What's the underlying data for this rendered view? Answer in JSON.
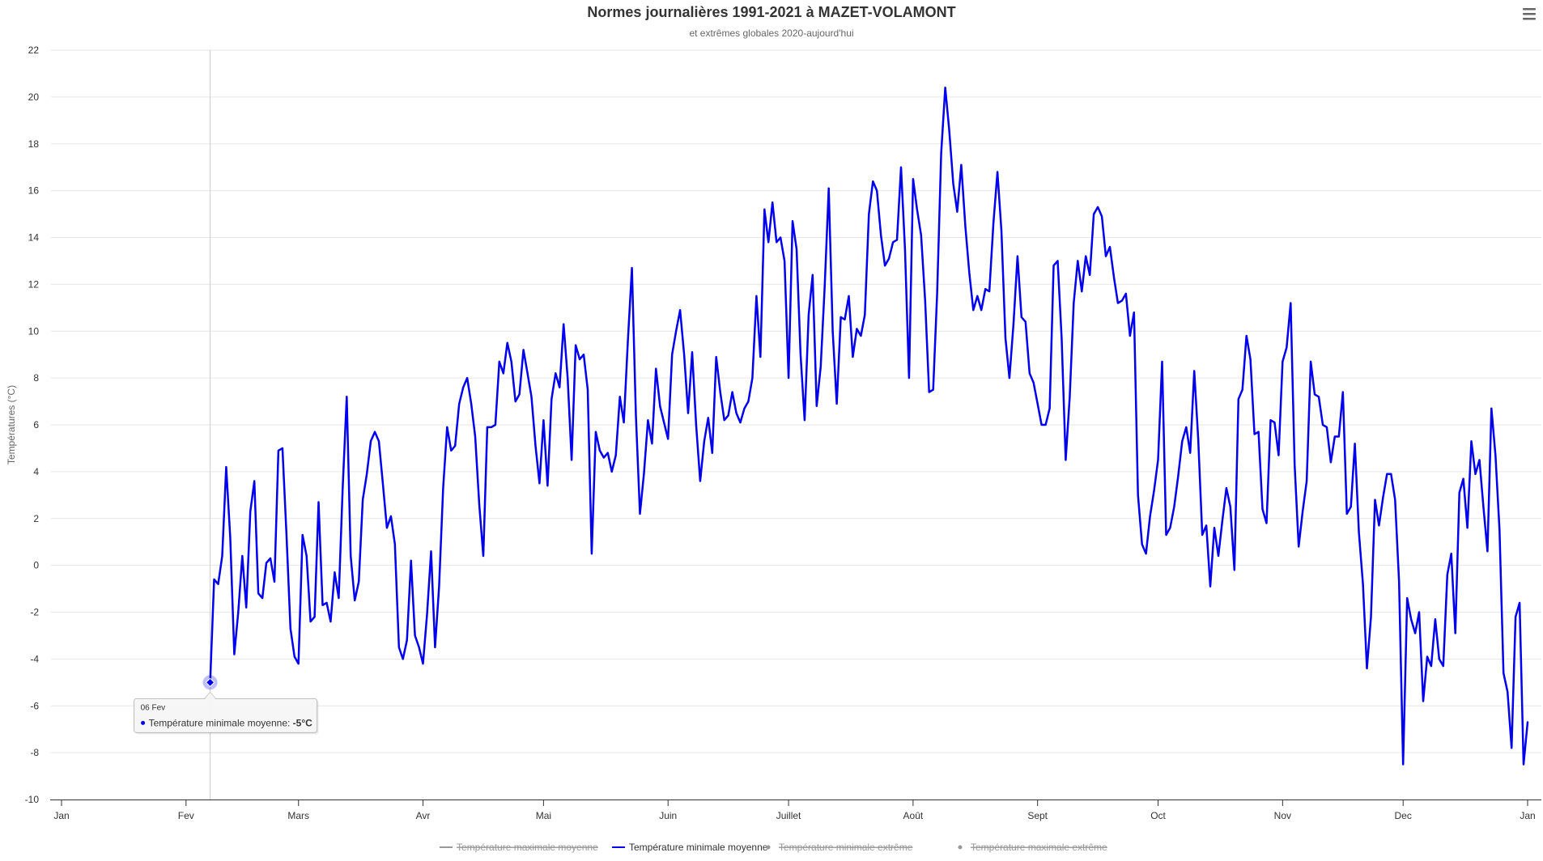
{
  "chart_data": {
    "type": "line",
    "title": "Normes journalières 1991-2021 à MAZET-VOLAMONT",
    "subtitle": "et extrêmes globales 2020-aujourd'hui",
    "ylabel": "Températures (°C)",
    "ylim": [
      -10,
      22
    ],
    "yticks": [
      -10,
      -8,
      -6,
      -4,
      -2,
      0,
      2,
      4,
      6,
      8,
      10,
      12,
      14,
      16,
      18,
      20,
      22
    ],
    "xlim": [
      0,
      365
    ],
    "xticks": [
      {
        "label": "Jan",
        "day": 0
      },
      {
        "label": "Fev",
        "day": 31
      },
      {
        "label": "Mars",
        "day": 59
      },
      {
        "label": "Avr",
        "day": 90
      },
      {
        "label": "Mai",
        "day": 120
      },
      {
        "label": "Juin",
        "day": 151
      },
      {
        "label": "Juillet",
        "day": 181
      },
      {
        "label": "Août",
        "day": 212
      },
      {
        "label": "Sept",
        "day": 243
      },
      {
        "label": "Oct",
        "day": 273
      },
      {
        "label": "Nov",
        "day": 304
      },
      {
        "label": "Dec",
        "day": 334
      },
      {
        "label": "Jan",
        "day": 365
      }
    ],
    "grid": true,
    "legend_position": "bottom",
    "series": [
      {
        "name": "Température maximale moyenne",
        "visible": false,
        "color": "#333333",
        "marker": "line",
        "values": []
      },
      {
        "name": "Température minimale moyenne",
        "visible": true,
        "color": "#0000ee",
        "marker": "line",
        "start_day": 37,
        "values": [
          -5,
          -0.6,
          -0.8,
          0.4,
          4.2,
          1.2,
          -3.8,
          -2,
          0.4,
          -1.8,
          2.3,
          3.6,
          -1.2,
          -1.4,
          0.1,
          0.3,
          -0.7,
          4.9,
          5,
          1.3,
          -2.7,
          -3.9,
          -4.2,
          1.3,
          0.4,
          -2.4,
          -2.2,
          2.7,
          -1.7,
          -1.6,
          -2.4,
          -0.3,
          -1.4,
          3.3,
          7.2,
          0.4,
          -1.5,
          -0.7,
          2.8,
          3.9,
          5.3,
          5.7,
          5.3,
          3.5,
          1.6,
          2.1,
          0.9,
          -3.5,
          -4,
          -3.2,
          0.2,
          -3,
          -3.5,
          -4.2,
          -2.1,
          0.6,
          -3.5,
          -0.9,
          3.3,
          5.9,
          4.9,
          5.1,
          6.9,
          7.6,
          8,
          6.9,
          5.5,
          2.6,
          0.4,
          5.9,
          5.9,
          6,
          8.7,
          8.2,
          9.5,
          8.7,
          7,
          7.3,
          9.2,
          8.2,
          7.2,
          5.1,
          3.5,
          6.2,
          3.4,
          7.1,
          8.2,
          7.6,
          10.3,
          8,
          4.5,
          9.4,
          8.8,
          9,
          7.5,
          0.5,
          5.7,
          4.9,
          4.6,
          4.8,
          4,
          4.7,
          7.2,
          6.1,
          9.6,
          12.7,
          6.4,
          2.2,
          3.9,
          6.2,
          5.2,
          8.4,
          6.8,
          6.1,
          5.4,
          9,
          10,
          10.9,
          9,
          6.5,
          9.1,
          6,
          3.6,
          5.3,
          6.3,
          4.8,
          8.9,
          7.4,
          6.2,
          6.4,
          7.4,
          6.5,
          6.1,
          6.7,
          7,
          8,
          11.5,
          8.9,
          15.2,
          13.8,
          15.5,
          13.8,
          14,
          13,
          8,
          14.7,
          13.5,
          9,
          6.2,
          10.7,
          12.4,
          6.8,
          8.5,
          11.9,
          16.1,
          10,
          6.9,
          10.6,
          10.5,
          11.5,
          8.9,
          10.1,
          9.8,
          10.7,
          15,
          16.4,
          16,
          14.1,
          12.8,
          13.1,
          13.8,
          13.9,
          17,
          13.5,
          8,
          16.5,
          15.2,
          14.1,
          11.3,
          7.4,
          7.5,
          11.6,
          17.6,
          20.4,
          18.6,
          16.3,
          15.1,
          17.1,
          14.5,
          12.5,
          10.9,
          11.5,
          10.9,
          11.8,
          11.7,
          14.6,
          16.8,
          14.3,
          9.7,
          8,
          10.3,
          13.2,
          10.6,
          10.4,
          8.2,
          7.8,
          6.9,
          6,
          6,
          6.7,
          12.8,
          13,
          9.7,
          4.5,
          7.2,
          11.2,
          13,
          11.7,
          13.2,
          12.4,
          15,
          15.3,
          14.9,
          13.2,
          13.6,
          12.3,
          11.2,
          11.3,
          11.6,
          9.8,
          10.8,
          3,
          0.9,
          0.5,
          2.1,
          3.2,
          4.5,
          8.7,
          1.3,
          1.6,
          2.5,
          3.8,
          5.3,
          5.9,
          4.8,
          8.3,
          5.4,
          1.3,
          1.7,
          -0.9,
          1.6,
          0.4,
          1.9,
          3.3,
          2.5,
          -0.2,
          7.1,
          7.5,
          9.8,
          8.8,
          5.6,
          5.7,
          2.4,
          1.8,
          6.2,
          6.1,
          4.7,
          8.7,
          9.3,
          11.2,
          4.3,
          0.8,
          2.3,
          3.6,
          8.7,
          7.3,
          7.2,
          6,
          5.9,
          4.4,
          5.5,
          5.5,
          7.4,
          2.2,
          2.5,
          5.2,
          1.4,
          -0.8,
          -4.4,
          -2.2,
          2.8,
          1.7,
          2.9,
          3.9,
          3.9,
          2.8,
          -0.7,
          -8.5,
          -1.4,
          -2.3,
          -2.9,
          -2,
          -5.8,
          -3.9,
          -4.3,
          -2.3,
          -4,
          -4.3,
          -0.4,
          0.5,
          -2.9,
          3.1,
          3.7,
          1.6,
          5.3,
          3.9,
          4.5,
          2.5,
          0.6,
          6.7,
          4.7,
          1.5,
          -4.6,
          -5.4,
          -7.8,
          -2.2,
          -1.6,
          -8.5,
          -6.7
        ]
      },
      {
        "name": "Température minimale extrême",
        "visible": false,
        "color": "#333333",
        "marker": "dot",
        "values": []
      },
      {
        "name": "Température maximale extrême",
        "visible": false,
        "color": "#333333",
        "marker": "dot",
        "values": []
      }
    ],
    "tooltip": {
      "day": 37,
      "date_label": "06 Fev",
      "series_label": "Température minimale moyenne:",
      "value_label": "-5°C"
    }
  },
  "toolbar": {
    "menu_icon": "hamburger-menu-icon"
  }
}
